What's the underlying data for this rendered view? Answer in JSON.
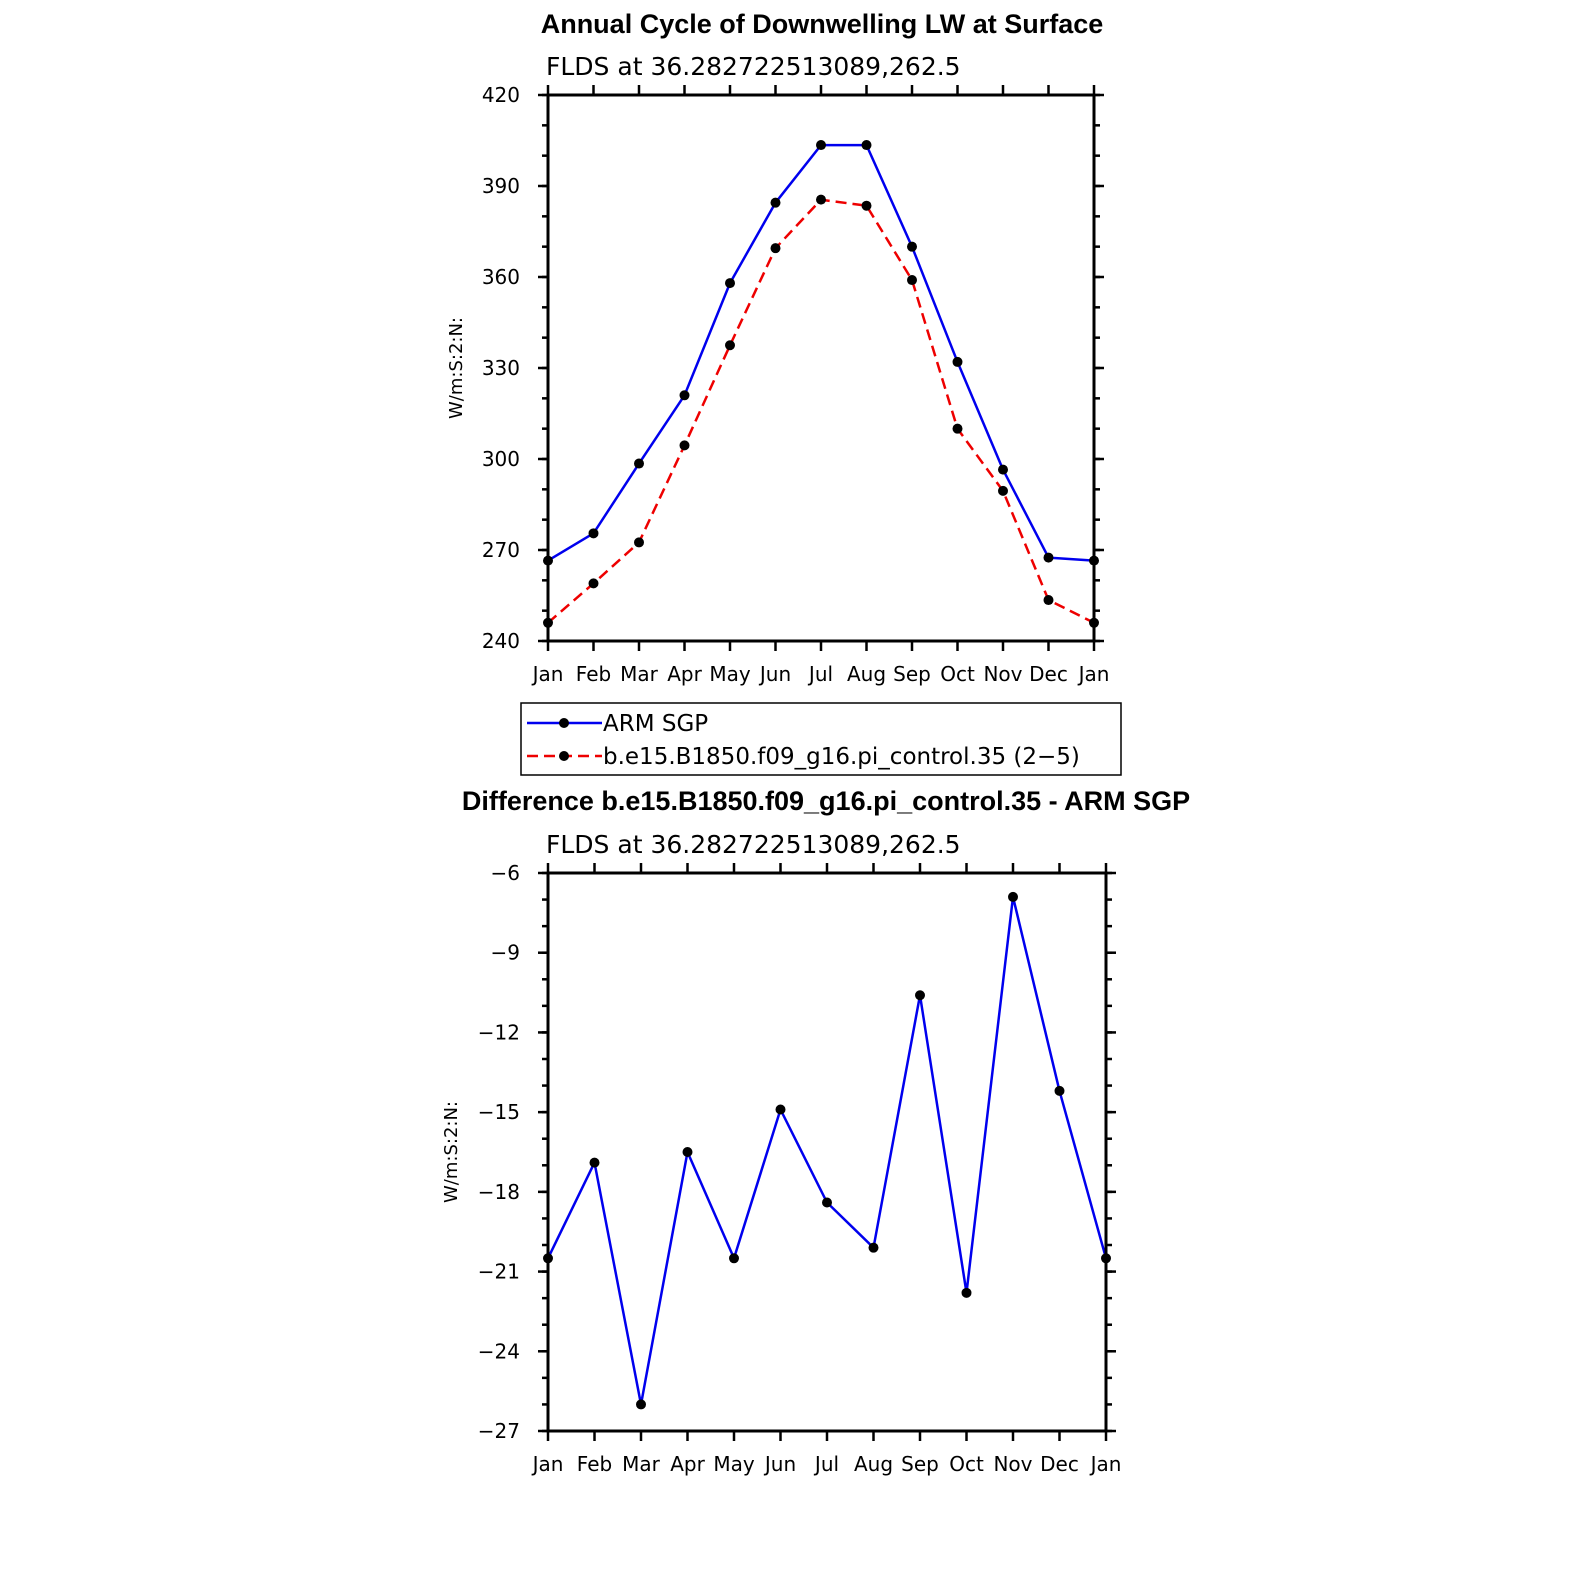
{
  "chart_data": [
    {
      "type": "line",
      "title": "Annual Cycle of Downwelling LW at Surface",
      "subtitle": "FLDS at 36.282722513089,262.5",
      "ylabel": "W/m:S:2:N:",
      "categories": [
        "Jan",
        "Feb",
        "Mar",
        "Apr",
        "May",
        "Jun",
        "Jul",
        "Aug",
        "Sep",
        "Oct",
        "Nov",
        "Dec",
        "Jan"
      ],
      "ylim": [
        240,
        420
      ],
      "yticks": [
        "240",
        "270",
        "300",
        "330",
        "360",
        "390",
        "420"
      ],
      "yminor_step": 10,
      "series": [
        {
          "name": "ARM SGP",
          "color": "#0000ee",
          "dash": "solid",
          "values": [
            266.5,
            275.5,
            298.5,
            321,
            358,
            384.5,
            403.5,
            403.5,
            370,
            332,
            296.5,
            267.5,
            266.5
          ]
        },
        {
          "name": "b.e15.B1850.f09_g16.pi_control.35 (2−5)",
          "color": "#ee0000",
          "dash": "dashed",
          "values": [
            246,
            259,
            272.5,
            304.5,
            337.5,
            369.5,
            385.5,
            383.5,
            359,
            310,
            289.5,
            253.5,
            246
          ]
        }
      ],
      "legend": "below"
    },
    {
      "type": "line",
      "title": "Difference b.e15.B1850.f09_g16.pi_control.35 - ARM SGP",
      "subtitle": "FLDS at 36.282722513089,262.5",
      "ylabel": "W/m:S:2:N:",
      "categories": [
        "Jan",
        "Feb",
        "Mar",
        "Apr",
        "May",
        "Jun",
        "Jul",
        "Aug",
        "Sep",
        "Oct",
        "Nov",
        "Dec",
        "Jan"
      ],
      "ylim": [
        -27,
        -6
      ],
      "yticks": [
        "−27",
        "−24",
        "−21",
        "−18",
        "−15",
        "−12",
        "−9",
        "−6"
      ],
      "yminor_step": 1,
      "series": [
        {
          "name": "",
          "color": "#0000ee",
          "dash": "solid",
          "values": [
            -20.5,
            -16.9,
            -26,
            -16.5,
            -20.5,
            -14.9,
            -18.4,
            -20.1,
            -10.6,
            -21.8,
            -6.9,
            -14.2,
            -20.5
          ]
        }
      ]
    }
  ]
}
